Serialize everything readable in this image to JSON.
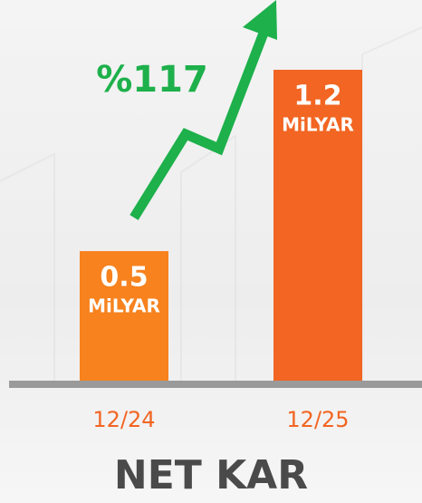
{
  "chart_data": {
    "type": "bar",
    "title": "NET KAR",
    "annotation": "%117",
    "unit": "MiLYAR",
    "categories": [
      "12/24",
      "12/25"
    ],
    "values": [
      0.5,
      1.2
    ],
    "colors": [
      "#f7821e",
      "#f26522"
    ],
    "annotation_color": "#1db04b"
  }
}
